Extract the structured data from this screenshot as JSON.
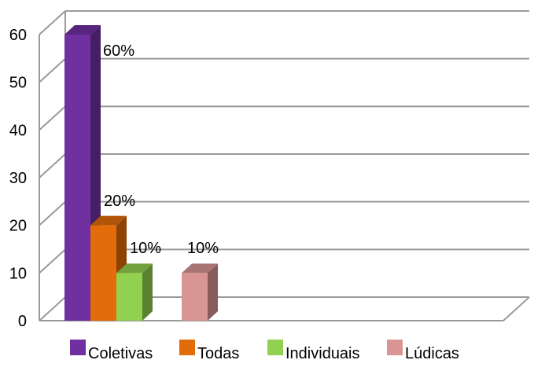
{
  "chart_data": {
    "type": "bar",
    "categories": [
      "Coletivas",
      "Todas",
      "Individuais",
      "Lúdicas"
    ],
    "values": [
      60,
      20,
      10,
      10
    ],
    "data_labels": [
      "60%",
      "20%",
      "10%",
      "10%"
    ],
    "colors": [
      "#7030a0",
      "#e36c0a",
      "#92d050",
      "#d99594"
    ],
    "ylim": [
      0,
      60
    ],
    "yticks": [
      "0",
      "10",
      "20",
      "30",
      "40",
      "50",
      "60"
    ],
    "grid": true,
    "legend_position": "bottom",
    "three_d": true
  }
}
